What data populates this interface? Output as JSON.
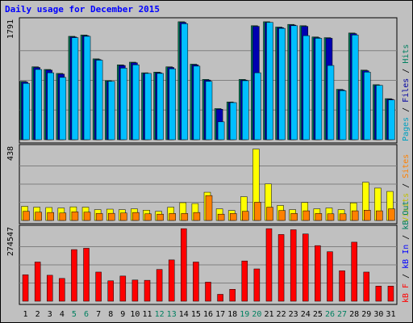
{
  "chart_data": {
    "type": "bar",
    "title": "Daily usage for December 2015",
    "categories": [
      "1",
      "2",
      "3",
      "4",
      "5",
      "6",
      "7",
      "8",
      "9",
      "10",
      "11",
      "12",
      "13",
      "14",
      "15",
      "16",
      "17",
      "18",
      "19",
      "20",
      "21",
      "22",
      "23",
      "24",
      "25",
      "26",
      "27",
      "28",
      "29",
      "30",
      "31"
    ],
    "weekend_days": [
      "5",
      "6",
      "12",
      "13",
      "19",
      "20",
      "26",
      "27"
    ],
    "panels": [
      {
        "id": "hits",
        "max_label": "1791",
        "ymax": 1791,
        "legend": [
          {
            "text": "Pages",
            "color": "#00a0c0"
          },
          {
            "text": " / ",
            "color": "#000000"
          },
          {
            "text": "Files",
            "color": "#0000a0"
          },
          {
            "text": " / ",
            "color": "#000000"
          },
          {
            "text": "Hits",
            "color": "#008060"
          }
        ],
        "series": [
          {
            "name": "Hits",
            "color": "#00805c",
            "values": [
              880,
              1100,
              1060,
              1000,
              1560,
              1580,
              1220,
              890,
              1130,
              1170,
              1010,
              1020,
              1100,
              1780,
              1140,
              910,
              470,
              570,
              910,
              1720,
              1780,
              1700,
              1740,
              1720,
              1550,
              1540,
              760,
              1610,
              1050,
              830,
              620
            ]
          },
          {
            "name": "Files",
            "color": "#0000b0",
            "values": [
              870,
              1090,
              1050,
              990,
              1550,
              1570,
              1210,
              880,
              1120,
              1160,
              1000,
              1010,
              1090,
              1770,
              1130,
              900,
              460,
              560,
              900,
              1710,
              1770,
              1690,
              1730,
              1710,
              1540,
              1530,
              750,
              1600,
              1040,
              820,
              610
            ]
          },
          {
            "name": "Pages",
            "color": "#00bfff",
            "values": [
              850,
              1060,
              1010,
              940,
              1540,
              1560,
              1200,
              880,
              1080,
              1130,
              1000,
              1000,
              1070,
              1750,
              1110,
              880,
              270,
              560,
              890,
              1010,
              1770,
              1680,
              1720,
              1570,
              1530,
              1120,
              740,
              1580,
              1020,
              820,
              600
            ]
          }
        ]
      },
      {
        "id": "visits",
        "max_label": "438",
        "ymax": 438,
        "legend": [
          {
            "text": "Visits",
            "color": "#c0c000"
          },
          {
            "text": " / ",
            "color": "#000000"
          },
          {
            "text": "Sites",
            "color": "#ff8000"
          }
        ],
        "series": [
          {
            "name": "Visits",
            "color": "#ffff00",
            "values": [
              85,
              80,
              78,
              75,
              82,
              80,
              65,
              68,
              65,
              70,
              62,
              55,
              80,
              107,
              102,
              170,
              70,
              60,
              143,
              430,
              220,
              90,
              65,
              108,
              70,
              75,
              65,
              106,
              230,
              195,
              175
            ]
          },
          {
            "name": "Sites",
            "color": "#ff8000",
            "values": [
              55,
              50,
              48,
              45,
              52,
              50,
              42,
              43,
              45,
              48,
              40,
              38,
              42,
              42,
              48,
              150,
              38,
              42,
              55,
              110,
              80,
              60,
              42,
              58,
              42,
              40,
              40,
              58,
              62,
              58,
              70
            ]
          }
        ]
      },
      {
        "id": "kbytes",
        "max_label": "274547",
        "ymax": 274547,
        "legend": [
          {
            "text": "kB F",
            "color": "#ff0000"
          },
          {
            "text": " / ",
            "color": "#000000"
          },
          {
            "text": "kB In",
            "color": "#0000ff"
          },
          {
            "text": " / ",
            "color": "#000000"
          },
          {
            "text": "kB Out",
            "color": "#008060"
          }
        ],
        "series": [
          {
            "name": "kB F",
            "color": "#ff0000",
            "values": [
              100000,
              148000,
              98000,
              86000,
              195000,
              200000,
              110000,
              77000,
              95000,
              80000,
              79000,
              120000,
              156000,
              274000,
              148000,
              72000,
              26000,
              45000,
              152000,
              122000,
              274000,
              252000,
              270000,
              254000,
              210000,
              187000,
              115000,
              223000,
              110000,
              57000,
              57000
            ]
          }
        ]
      }
    ]
  }
}
